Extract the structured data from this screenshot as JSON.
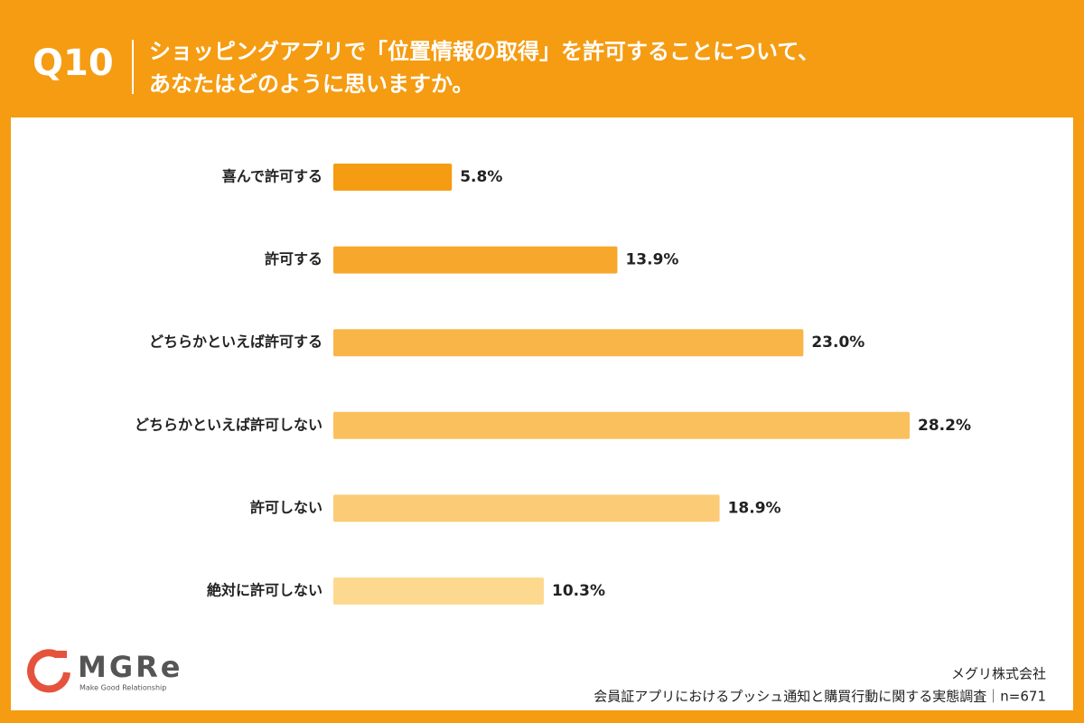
{
  "chart_data": {
    "type": "hbar",
    "question_number": "Q10",
    "title_lines": [
      "ショッピングアプリで「位置情報の取得」を許可することについて、",
      "あなたはどのように思いますか。"
    ],
    "categories": [
      "喜んで許可する",
      "許可する",
      "どちらかといえば許可する",
      "どちらかといえば許可しない",
      "許可しない",
      "絶対に許可しない"
    ],
    "values": [
      5.8,
      13.9,
      23.0,
      28.2,
      18.9,
      10.3
    ],
    "value_labels": [
      "5.8%",
      "13.9%",
      "23.0%",
      "28.2%",
      "18.9%",
      "10.3%"
    ],
    "colors": [
      "#f59c12",
      "#f7a72c",
      "#f9b547",
      "#fac05e",
      "#fccb76",
      "#fdd98f"
    ],
    "source": "メグリ株式会社",
    "note": "会員証アプリにおけるプッシュ通知と購買行動に関する実態調査｜n=671"
  },
  "logo": {
    "name": "MGRe",
    "tagline": "Make Good Relationship"
  }
}
